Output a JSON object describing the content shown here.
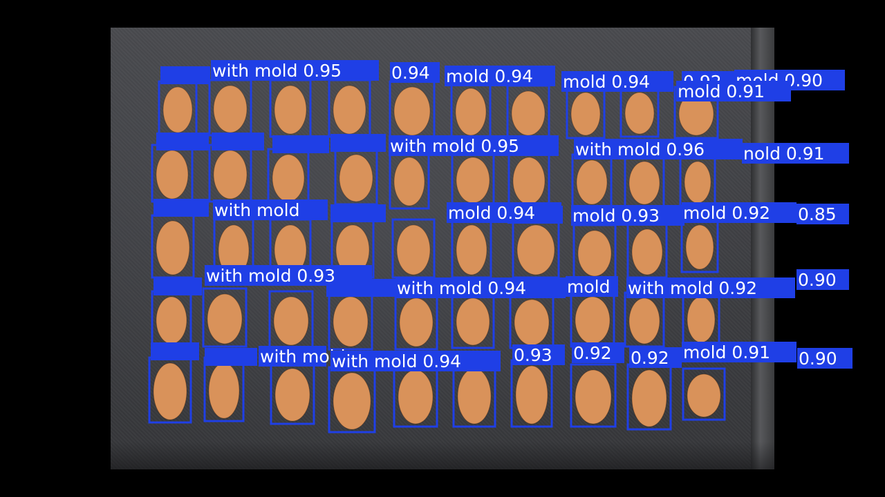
{
  "scene": {
    "subject": "peanut kernels on dark cloth with object-detection boxes",
    "box_color": "#1f3fe6",
    "label_text_color": "#ffffff",
    "kernel_color": "#d9925a"
  },
  "detections": [
    {
      "label": "with mold 0.95"
    },
    {
      "label": "0.94"
    },
    {
      "label": "mold 0.94"
    },
    {
      "label": "mold 0.94"
    },
    {
      "label": "0.92"
    },
    {
      "label": "mold 0.90"
    },
    {
      "label": "mold 0.91"
    },
    {
      "label": "with mold 0.95"
    },
    {
      "label": "with mold 0.96"
    },
    {
      "label": "nold 0.91"
    },
    {
      "label": "with mold"
    },
    {
      "label": "mold 0.94"
    },
    {
      "label": "mold 0.93"
    },
    {
      "label": "mold 0.92"
    },
    {
      "label": "0.85"
    },
    {
      "label": "with mold 0.93"
    },
    {
      "label": "with mold 0.94"
    },
    {
      "label": "mold"
    },
    {
      "label": "with mold 0.92"
    },
    {
      "label": "0.90"
    },
    {
      "label": "with mold"
    },
    {
      "label": "with mold 0.94"
    },
    {
      "label": "0.93"
    },
    {
      "label": "0.92"
    },
    {
      "label": "0.92"
    },
    {
      "label": "mold 0.91"
    },
    {
      "label": "0.90"
    }
  ]
}
